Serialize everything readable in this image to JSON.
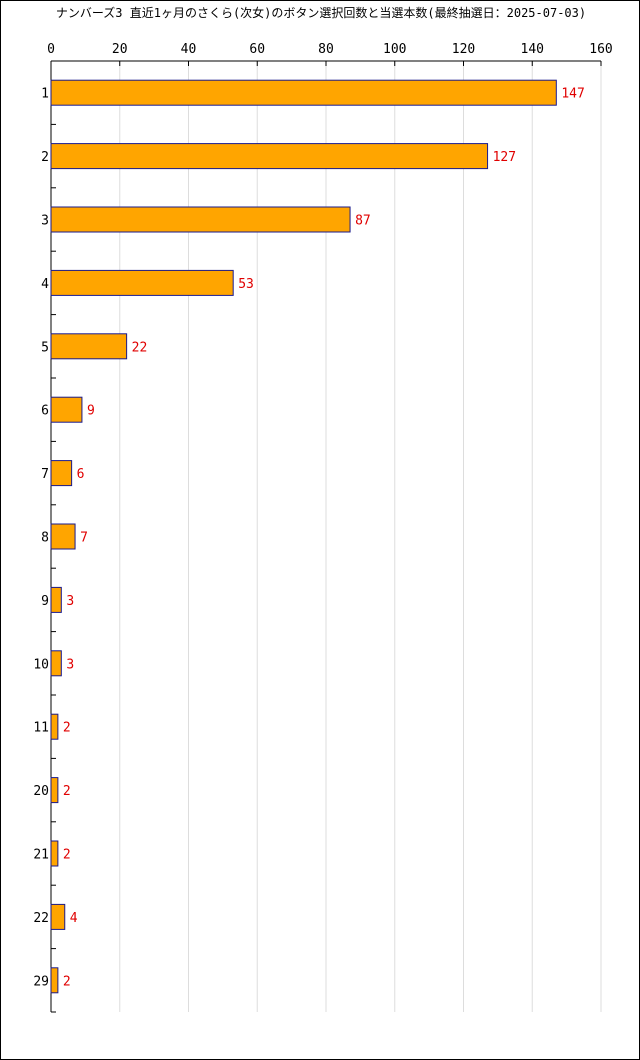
{
  "chart_data": {
    "type": "bar",
    "orientation": "horizontal",
    "title": "ナンバーズ3 直近1ヶ月のさくら(次女)のボタン選択回数と当選本数(最終抽選日：2025-07-03)",
    "categories": [
      "1",
      "2",
      "3",
      "4",
      "5",
      "6",
      "7",
      "8",
      "9",
      "10",
      "11",
      "20",
      "21",
      "22",
      "29"
    ],
    "values": [
      147,
      127,
      87,
      53,
      22,
      9,
      6,
      7,
      3,
      3,
      2,
      2,
      2,
      4,
      2
    ],
    "xlim": [
      0,
      160
    ],
    "x_ticks": [
      0,
      20,
      40,
      60,
      80,
      100,
      120,
      140,
      160
    ],
    "xlabel": "",
    "ylabel": "",
    "grid": "vertical",
    "x_axis_position": "top",
    "colors": {
      "bar_fill": "#ffa500",
      "bar_stroke": "#1a1a8c",
      "value_label": "#e00000",
      "grid": "#dddddd",
      "axis": "#000000"
    }
  }
}
